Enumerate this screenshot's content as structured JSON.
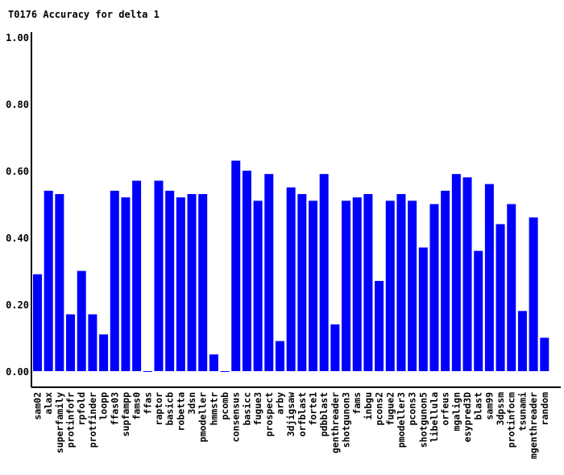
{
  "chart_data": {
    "type": "bar",
    "title": "T0176 Accuracy for delta 1",
    "xlabel": "",
    "ylabel": "",
    "ylim": [
      0,
      1
    ],
    "yticks": [
      "0.00",
      "0.20",
      "0.40",
      "0.60",
      "0.80",
      "1.00"
    ],
    "bar_color": "#0000ff",
    "categories": [
      "sam02",
      "alax",
      "superfamily",
      "protinfofr",
      "rpfold",
      "protfinder",
      "loopp",
      "ffas03",
      "supfampp",
      "fams0",
      "ffas",
      "raptor",
      "basicb",
      "robetta",
      "3dsn",
      "pmodeller",
      "hmmstr",
      "pcomb",
      "consensus",
      "basicc",
      "fugue3",
      "prospect",
      "arby",
      "3djigsaw",
      "orfblast",
      "forte1",
      "pdbblast",
      "genthreader",
      "shotgunon3",
      "fams",
      "inbgu",
      "pcons2",
      "fugue2",
      "pmodeller3",
      "pcons3",
      "shotgunon5",
      "libellula",
      "orfeus",
      "mgalign",
      "esypred3D",
      "blast",
      "sam99",
      "3dpssm",
      "protinfocm",
      "tsunami",
      "mgenthreader",
      "random"
    ],
    "values": [
      0.29,
      0.54,
      0.53,
      0.17,
      0.3,
      0.17,
      0.11,
      0.54,
      0.52,
      0.57,
      0.0,
      0.57,
      0.54,
      0.52,
      0.53,
      0.53,
      0.05,
      0.0,
      0.63,
      0.6,
      0.51,
      0.59,
      0.09,
      0.55,
      0.53,
      0.51,
      0.59,
      0.14,
      0.51,
      0.52,
      0.53,
      0.27,
      0.51,
      0.53,
      0.51,
      0.37,
      0.5,
      0.54,
      0.59,
      0.58,
      0.36,
      0.56,
      0.44,
      0.5,
      0.18,
      0.46,
      0.1
    ]
  }
}
